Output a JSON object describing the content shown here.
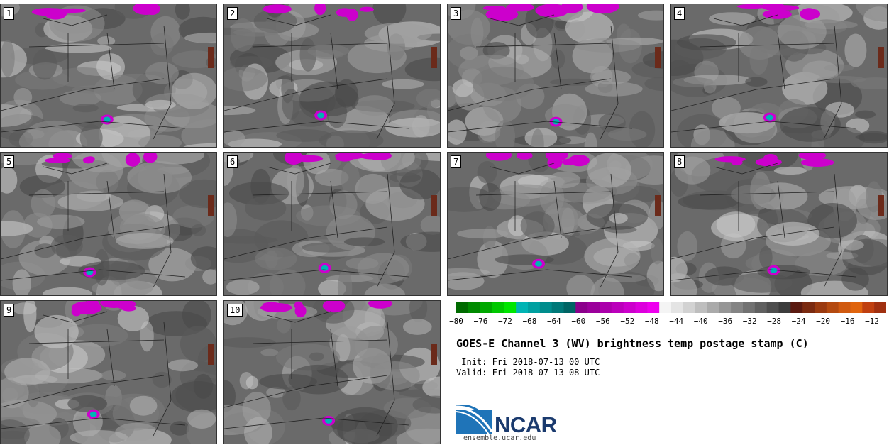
{
  "panels": [
    {
      "label": "1"
    },
    {
      "label": "2"
    },
    {
      "label": "3"
    },
    {
      "label": "4"
    },
    {
      "label": "5"
    },
    {
      "label": "6"
    },
    {
      "label": "7"
    },
    {
      "label": "8"
    },
    {
      "label": "9"
    },
    {
      "label": "10"
    }
  ],
  "colorbar": {
    "ticks": [
      "−80",
      "−76",
      "−72",
      "−68",
      "−64",
      "−60",
      "−56",
      "−52",
      "−48",
      "−44",
      "−40",
      "−36",
      "−32",
      "−28",
      "−24",
      "−20",
      "−16",
      "−12"
    ],
    "colors": [
      "#006b00",
      "#008a00",
      "#00a800",
      "#00c800",
      "#00e600",
      "#00b4b4",
      "#00a0a0",
      "#008c8c",
      "#007878",
      "#006464",
      "#8b008b",
      "#9b009b",
      "#ab00ab",
      "#bb00bb",
      "#cc00cc",
      "#dd00dd",
      "#ee00ee",
      "#f4f4f4",
      "#e4e4e4",
      "#d2d2d2",
      "#bebebe",
      "#aaaaaa",
      "#969696",
      "#848484",
      "#727272",
      "#606060",
      "#4e4e4e",
      "#3c3c3c",
      "#5a1a10",
      "#7a2a10",
      "#9a3a10",
      "#b44a10",
      "#d05a10",
      "#e0640e",
      "#c04010",
      "#a03010"
    ]
  },
  "title": "GOES-E Channel 3 (WV) brightness temp postage stamp (C)",
  "init": " Init: Fri 2018-07-13 00 UTC",
  "valid": "Valid: Fri 2018-07-13 08 UTC",
  "logo": {
    "text": "NCAR",
    "site": "ensemble.ucar.edu",
    "color": "#1a3a6e",
    "swoosh_color": "#1f74b8"
  }
}
